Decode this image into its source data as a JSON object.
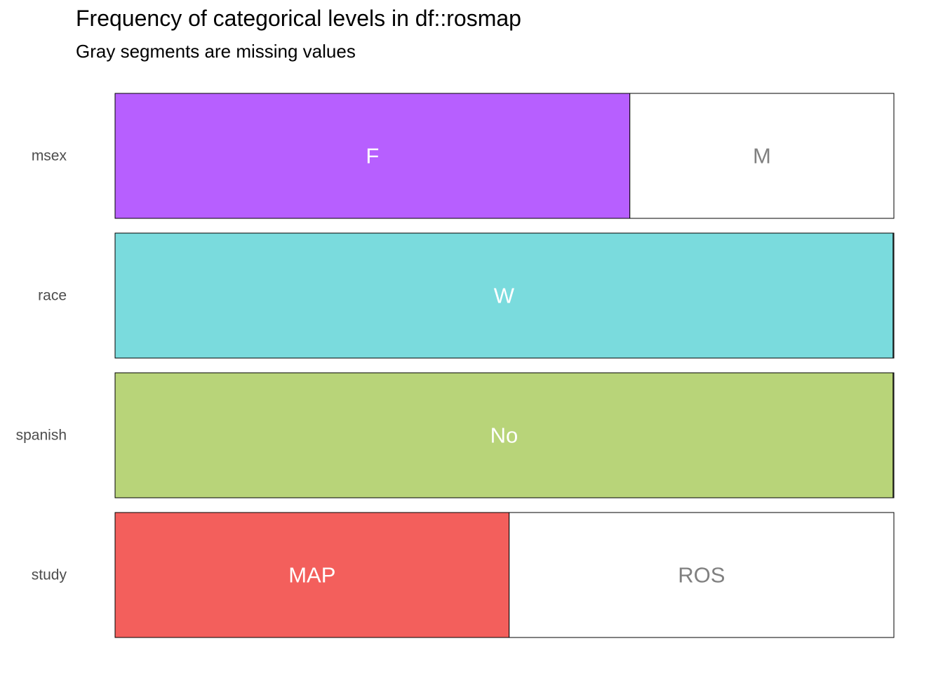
{
  "chart_data": {
    "type": "bar",
    "orientation": "horizontal",
    "stacked": "proportion",
    "title": "Frequency of categorical levels in df::rosmap",
    "subtitle": "Gray segments are missing values",
    "xlabel": "",
    "ylabel": "",
    "grid": false,
    "legend": "none",
    "xlim": [
      0,
      1
    ],
    "variables": [
      {
        "name": "msex",
        "levels": [
          {
            "label": "F",
            "proportion": 0.661,
            "color": "#B75FFF",
            "label_color": "#FFFFFF"
          },
          {
            "label": "M",
            "proportion": 0.339,
            "color": "#FFFFFF",
            "label_color": "#808080"
          }
        ]
      },
      {
        "name": "race",
        "levels": [
          {
            "label": "W",
            "proportion": 0.999,
            "color": "#7ADBDD",
            "label_color": "#FFFFFF"
          },
          {
            "label": "",
            "proportion": 0.001,
            "color": "#FFFFFF",
            "label_color": "#808080"
          }
        ]
      },
      {
        "name": "spanish",
        "levels": [
          {
            "label": "No",
            "proportion": 0.999,
            "color": "#B8D479",
            "label_color": "#FFFFFF"
          },
          {
            "label": "",
            "proportion": 0.001,
            "color": "#FFFFFF",
            "label_color": "#808080"
          }
        ]
      },
      {
        "name": "study",
        "levels": [
          {
            "label": "MAP",
            "proportion": 0.506,
            "color": "#F35F5C",
            "label_color": "#FFFFFF"
          },
          {
            "label": "ROS",
            "proportion": 0.494,
            "color": "#FFFFFF",
            "label_color": "#808080"
          }
        ]
      }
    ]
  }
}
